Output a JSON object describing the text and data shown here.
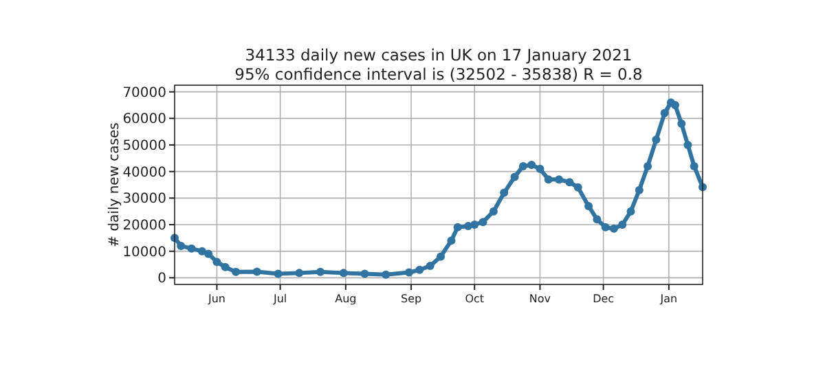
{
  "chart_data": {
    "type": "line",
    "title": "34133 daily new cases in UK on 17 January 2021",
    "subtitle": "95% confidence interval is (32502 - 35838) R = 0.8",
    "ylabel": "# daily new cases",
    "x": [
      "2020-05-12",
      "2020-05-15",
      "2020-05-20",
      "2020-05-25",
      "2020-05-28",
      "2020-06-01",
      "2020-06-05",
      "2020-06-10",
      "2020-06-20",
      "2020-06-30",
      "2020-07-10",
      "2020-07-20",
      "2020-07-31",
      "2020-08-10",
      "2020-08-20",
      "2020-08-31",
      "2020-09-05",
      "2020-09-10",
      "2020-09-15",
      "2020-09-20",
      "2020-09-23",
      "2020-09-28",
      "2020-10-01",
      "2020-10-05",
      "2020-10-10",
      "2020-10-15",
      "2020-10-20",
      "2020-10-24",
      "2020-10-28",
      "2020-11-01",
      "2020-11-05",
      "2020-11-10",
      "2020-11-15",
      "2020-11-19",
      "2020-11-24",
      "2020-11-28",
      "2020-12-02",
      "2020-12-06",
      "2020-12-10",
      "2020-12-14",
      "2020-12-18",
      "2020-12-22",
      "2020-12-26",
      "2020-12-30",
      "2021-01-02",
      "2021-01-04",
      "2021-01-07",
      "2021-01-10",
      "2021-01-13",
      "2021-01-17"
    ],
    "series": [
      {
        "color": "#3274a1",
        "values": [
          15000,
          12000,
          11000,
          10000,
          9000,
          6000,
          4000,
          2200,
          2300,
          1500,
          1800,
          2200,
          1800,
          1500,
          1200,
          2000,
          3000,
          4500,
          8000,
          14000,
          19000,
          19500,
          20000,
          21000,
          25000,
          32000,
          38000,
          42000,
          42500,
          41000,
          37000,
          37000,
          36000,
          34000,
          27000,
          22000,
          19000,
          18500,
          20000,
          25000,
          33000,
          42000,
          52000,
          62000,
          66000,
          65000,
          58000,
          50000,
          42000,
          34133
        ]
      }
    ],
    "xlim": [
      "2020-05-12",
      "2021-01-17"
    ],
    "xticks": [
      {
        "value": "2020-06-01",
        "label": "Jun"
      },
      {
        "value": "2020-07-01",
        "label": "Jul"
      },
      {
        "value": "2020-08-01",
        "label": "Aug"
      },
      {
        "value": "2020-09-01",
        "label": "Sep"
      },
      {
        "value": "2020-10-01",
        "label": "Oct"
      },
      {
        "value": "2020-11-01",
        "label": "Nov"
      },
      {
        "value": "2020-12-01",
        "label": "Dec"
      },
      {
        "value": "2021-01-01",
        "label": "Jan"
      }
    ],
    "ylim": [
      -2500,
      72500
    ],
    "yticks": [
      0,
      10000,
      20000,
      30000,
      40000,
      50000,
      60000,
      70000
    ],
    "grid": true,
    "marker": "circle",
    "line_style": "solid"
  }
}
